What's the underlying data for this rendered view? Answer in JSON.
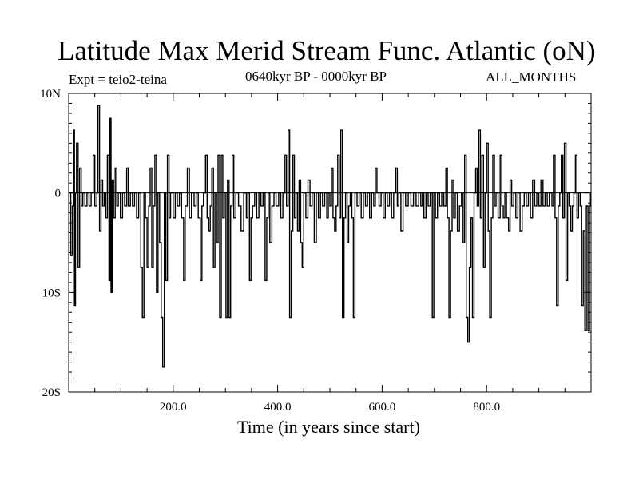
{
  "chart_data": {
    "type": "line",
    "title": "Latitude Max Merid Stream Func. Atlantic (oN)",
    "subtitle_left": "Expt = teio2-teina",
    "subtitle_center": "0640kyr BP - 0000kyr BP",
    "subtitle_right": "ALL_MONTHS",
    "xlabel": "Time (in years since start)",
    "ylabel": "",
    "xlim": [
      0,
      1000
    ],
    "ylim": [
      -20,
      10
    ],
    "x_ticks": [
      200,
      400,
      600,
      800
    ],
    "x_tick_labels": [
      "200.0",
      "400.0",
      "600.0",
      "800.0"
    ],
    "y_ticks": [
      10,
      0,
      -10,
      -20
    ],
    "y_tick_labels": [
      "10N",
      "0",
      "10S",
      "20S"
    ],
    "zero_line": true,
    "series": [
      {
        "name": "teio2-teina",
        "points": [
          [
            1,
            0
          ],
          [
            4,
            -6.3
          ],
          [
            7,
            -1.3
          ],
          [
            9,
            6.3
          ],
          [
            11,
            -11.3
          ],
          [
            13,
            0
          ],
          [
            15,
            5
          ],
          [
            18,
            -7.5
          ],
          [
            21,
            2.5
          ],
          [
            24,
            -1.3
          ],
          [
            27,
            0
          ],
          [
            31,
            -1.3
          ],
          [
            35,
            0
          ],
          [
            39,
            -1.3
          ],
          [
            43,
            0
          ],
          [
            47,
            3.8
          ],
          [
            50,
            -1.3
          ],
          [
            54,
            0
          ],
          [
            56,
            8.8
          ],
          [
            59,
            -3.8
          ],
          [
            62,
            1.3
          ],
          [
            65,
            -1.3
          ],
          [
            68,
            0
          ],
          [
            71,
            -2.5
          ],
          [
            74,
            3.8
          ],
          [
            77,
            -8.8
          ],
          [
            79,
            7.5
          ],
          [
            81,
            -10
          ],
          [
            83,
            1.3
          ],
          [
            86,
            -2.5
          ],
          [
            89,
            2.5
          ],
          [
            92,
            -1.3
          ],
          [
            95,
            0
          ],
          [
            99,
            -2.5
          ],
          [
            103,
            0
          ],
          [
            107,
            -1.3
          ],
          [
            111,
            2.5
          ],
          [
            114,
            -1.3
          ],
          [
            118,
            0
          ],
          [
            122,
            -1.3
          ],
          [
            126,
            0
          ],
          [
            130,
            -2.5
          ],
          [
            134,
            0
          ],
          [
            138,
            -7.5
          ],
          [
            141,
            -12.5
          ],
          [
            144,
            0
          ],
          [
            147,
            -2.5
          ],
          [
            150,
            -7.5
          ],
          [
            153,
            -1.3
          ],
          [
            156,
            2.5
          ],
          [
            159,
            -7.5
          ],
          [
            162,
            -1.3
          ],
          [
            165,
            3.8
          ],
          [
            168,
            -10
          ],
          [
            171,
            0
          ],
          [
            174,
            -5
          ],
          [
            177,
            -12.5
          ],
          [
            180,
            -17.5
          ],
          [
            183,
            0
          ],
          [
            186,
            -8.8
          ],
          [
            189,
            3.8
          ],
          [
            192,
            -2.5
          ],
          [
            195,
            0
          ],
          [
            200,
            -2.5
          ],
          [
            204,
            0
          ],
          [
            208,
            -1.3
          ],
          [
            212,
            0
          ],
          [
            216,
            -2.5
          ],
          [
            220,
            -8.8
          ],
          [
            223,
            -1.3
          ],
          [
            227,
            2.5
          ],
          [
            231,
            -2.5
          ],
          [
            235,
            0
          ],
          [
            240,
            -1.3
          ],
          [
            244,
            0
          ],
          [
            248,
            -2.5
          ],
          [
            252,
            -8.8
          ],
          [
            255,
            -1.3
          ],
          [
            258,
            0
          ],
          [
            262,
            3.8
          ],
          [
            265,
            -2.5
          ],
          [
            268,
            -3.8
          ],
          [
            271,
            -1.3
          ],
          [
            274,
            2.5
          ],
          [
            277,
            -7.5
          ],
          [
            280,
            0
          ],
          [
            283,
            -5
          ],
          [
            286,
            3.8
          ],
          [
            289,
            -12.5
          ],
          [
            292,
            3.8
          ],
          [
            295,
            -2.5
          ],
          [
            298,
            0
          ],
          [
            301,
            -12.5
          ],
          [
            304,
            1.3
          ],
          [
            307,
            -12.5
          ],
          [
            310,
            -1.3
          ],
          [
            313,
            3.8
          ],
          [
            316,
            -2.5
          ],
          [
            320,
            0
          ],
          [
            325,
            -1.3
          ],
          [
            330,
            -3.8
          ],
          [
            335,
            0
          ],
          [
            340,
            -2.5
          ],
          [
            343,
            0
          ],
          [
            346,
            -8.8
          ],
          [
            349,
            -2.5
          ],
          [
            352,
            -1.3
          ],
          [
            356,
            0
          ],
          [
            360,
            -2.5
          ],
          [
            364,
            0
          ],
          [
            368,
            -1.3
          ],
          [
            372,
            0
          ],
          [
            376,
            -8.8
          ],
          [
            379,
            -2.5
          ],
          [
            382,
            0
          ],
          [
            385,
            -5
          ],
          [
            389,
            -1.3
          ],
          [
            393,
            0
          ],
          [
            397,
            -1.3
          ],
          [
            402,
            0
          ],
          [
            406,
            -2.5
          ],
          [
            410,
            0
          ],
          [
            414,
            3.8
          ],
          [
            417,
            -1.3
          ],
          [
            420,
            6.3
          ],
          [
            423,
            -12.5
          ],
          [
            426,
            -3.8
          ],
          [
            429,
            3.8
          ],
          [
            432,
            -2.5
          ],
          [
            435,
            0
          ],
          [
            438,
            -3.8
          ],
          [
            441,
            1.3
          ],
          [
            444,
            -5
          ],
          [
            447,
            -7.5
          ],
          [
            450,
            0
          ],
          [
            454,
            -2.5
          ],
          [
            458,
            1.3
          ],
          [
            462,
            -1.3
          ],
          [
            466,
            0
          ],
          [
            470,
            -5
          ],
          [
            474,
            0
          ],
          [
            478,
            -2.5
          ],
          [
            482,
            0
          ],
          [
            486,
            -1.3
          ],
          [
            490,
            0
          ],
          [
            494,
            -2.5
          ],
          [
            497,
            0
          ],
          [
            500,
            -1.3
          ],
          [
            503,
            2.5
          ],
          [
            506,
            -2.5
          ],
          [
            509,
            -3.8
          ],
          [
            512,
            -1.3
          ],
          [
            515,
            3.8
          ],
          [
            518,
            -2.5
          ],
          [
            521,
            6.3
          ],
          [
            524,
            -12.5
          ],
          [
            527,
            -2.5
          ],
          [
            530,
            0
          ],
          [
            533,
            -5
          ],
          [
            536,
            -1.3
          ],
          [
            539,
            0
          ],
          [
            542,
            -2.5
          ],
          [
            545,
            -12.5
          ],
          [
            548,
            0
          ],
          [
            552,
            -1.3
          ],
          [
            556,
            0
          ],
          [
            560,
            -2.5
          ],
          [
            564,
            0
          ],
          [
            568,
            -1.3
          ],
          [
            572,
            0
          ],
          [
            576,
            -2.5
          ],
          [
            580,
            0
          ],
          [
            584,
            -1.3
          ],
          [
            587,
            2.5
          ],
          [
            590,
            0
          ],
          [
            594,
            -1.3
          ],
          [
            598,
            0
          ],
          [
            602,
            -2.5
          ],
          [
            606,
            0
          ],
          [
            610,
            -1.3
          ],
          [
            614,
            0
          ],
          [
            618,
            -2.5
          ],
          [
            622,
            0
          ],
          [
            626,
            2.5
          ],
          [
            629,
            -1.3
          ],
          [
            632,
            0
          ],
          [
            636,
            -3.8
          ],
          [
            640,
            0
          ],
          [
            645,
            -1.3
          ],
          [
            650,
            0
          ],
          [
            655,
            -1.3
          ],
          [
            660,
            0
          ],
          [
            665,
            -1.3
          ],
          [
            670,
            0
          ],
          [
            674,
            -1.3
          ],
          [
            677,
            0
          ],
          [
            680,
            -2.5
          ],
          [
            684,
            0
          ],
          [
            688,
            -1.3
          ],
          [
            692,
            0
          ],
          [
            696,
            -12.5
          ],
          [
            699,
            0
          ],
          [
            702,
            -2.5
          ],
          [
            706,
            0
          ],
          [
            710,
            -1.3
          ],
          [
            714,
            0
          ],
          [
            718,
            -1.3
          ],
          [
            722,
            2.5
          ],
          [
            725,
            -2.5
          ],
          [
            728,
            -12.5
          ],
          [
            731,
            -3.8
          ],
          [
            734,
            1.3
          ],
          [
            737,
            -2.5
          ],
          [
            740,
            0
          ],
          [
            744,
            -3.8
          ],
          [
            748,
            -1.3
          ],
          [
            752,
            0
          ],
          [
            755,
            -5
          ],
          [
            758,
            3.8
          ],
          [
            761,
            -12.5
          ],
          [
            764,
            -15
          ],
          [
            767,
            -7.5
          ],
          [
            770,
            -2.5
          ],
          [
            773,
            -12.5
          ],
          [
            776,
            0
          ],
          [
            779,
            2.5
          ],
          [
            782,
            -1.3
          ],
          [
            785,
            6.3
          ],
          [
            788,
            -2.5
          ],
          [
            791,
            3.8
          ],
          [
            794,
            -7.5
          ],
          [
            797,
            0
          ],
          [
            800,
            5
          ],
          [
            803,
            -3.8
          ],
          [
            806,
            -12.5
          ],
          [
            809,
            -2.5
          ],
          [
            812,
            3.8
          ],
          [
            815,
            -1.3
          ],
          [
            818,
            0
          ],
          [
            822,
            -2.5
          ],
          [
            826,
            3.8
          ],
          [
            829,
            -1.3
          ],
          [
            832,
            -2.5
          ],
          [
            835,
            0
          ],
          [
            838,
            -2.5
          ],
          [
            842,
            -3.8
          ],
          [
            845,
            1.3
          ],
          [
            848,
            -1.3
          ],
          [
            852,
            0
          ],
          [
            856,
            -2.5
          ],
          [
            860,
            0
          ],
          [
            864,
            -3.8
          ],
          [
            868,
            -1.3
          ],
          [
            872,
            0
          ],
          [
            876,
            -1.3
          ],
          [
            880,
            0
          ],
          [
            884,
            -2.5
          ],
          [
            888,
            1.3
          ],
          [
            892,
            -1.3
          ],
          [
            896,
            0
          ],
          [
            900,
            -1.3
          ],
          [
            904,
            1.3
          ],
          [
            908,
            -1.3
          ],
          [
            912,
            0
          ],
          [
            916,
            -1.3
          ],
          [
            920,
            0
          ],
          [
            925,
            -1.3
          ],
          [
            928,
            3.8
          ],
          [
            931,
            -2.5
          ],
          [
            934,
            -11.3
          ],
          [
            937,
            -1.3
          ],
          [
            940,
            0
          ],
          [
            943,
            3.8
          ],
          [
            946,
            -2.5
          ],
          [
            949,
            5
          ],
          [
            952,
            -8.8
          ],
          [
            955,
            0
          ],
          [
            958,
            -1.3
          ],
          [
            961,
            -3.8
          ],
          [
            964,
            -1.3
          ],
          [
            967,
            0
          ],
          [
            970,
            3.8
          ],
          [
            973,
            -2.5
          ],
          [
            976,
            0
          ],
          [
            979,
            -1.3
          ],
          [
            982,
            -11.3
          ],
          [
            985,
            -3.8
          ],
          [
            988,
            -13.8
          ],
          [
            991,
            -1.3
          ],
          [
            994,
            -13.8
          ],
          [
            997,
            -1.3
          ],
          [
            999,
            0
          ]
        ]
      }
    ]
  }
}
